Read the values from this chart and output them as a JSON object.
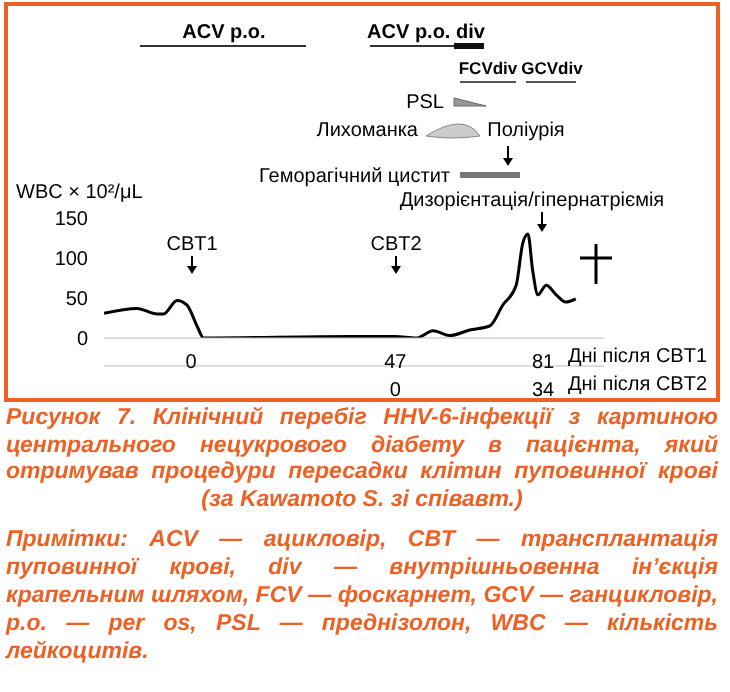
{
  "chart_data": {
    "type": "line",
    "title": "Рисунок 7. Клінічний перебіг HHV-6-інфекції з картиною центрального нецукрового діабету в пацієнта, який отримував процедури пересадки клітин пуповинної крові (за Kawamoto S. зі співавт.)",
    "ylabel": "WBC × 10²/μL",
    "xlabel": "Дні після CBT1",
    "x2label": "Дні після CBT2",
    "x": [
      -20,
      -12.4,
      -7.8,
      -6.3,
      -3.2,
      -0.9,
      1.4,
      2.9,
      36.5,
      47,
      51.8,
      55.7,
      59.5,
      64.1,
      68.7,
      71.7,
      74.8,
      76.3,
      77.5,
      78.6,
      79.8,
      81.7,
      84,
      86.2,
      88.5
    ],
    "values": [
      31,
      37,
      30,
      30,
      47,
      41,
      15,
      0,
      2,
      2,
      0,
      9,
      3,
      10,
      15,
      41,
      66,
      118,
      130,
      84,
      54,
      66,
      54,
      45,
      49
    ],
    "color": "#000000",
    "marker": "none",
    "line_style": "solid",
    "xlim": [
      -20,
      95
    ],
    "xticks": [
      0,
      47,
      81
    ],
    "x2lim": [
      -67,
      48
    ],
    "x2ticks": [
      0,
      34
    ],
    "ylim": [
      0,
      150
    ],
    "yticks": [
      0,
      50,
      100,
      150
    ],
    "annotations": [
      "ACV p.o.",
      "ACV p.o. div",
      "FCVdiv",
      "GCVdiv",
      "PSL",
      "Лихоманка",
      "Поліурія",
      "Геморагічний цистит",
      "Дизорієнтація/гіпернатріємія",
      "CBT1",
      "CBT2",
      "Примітки: ACV — ацикловір, CBT — трансплантація пуповинної крові, div — внутрішньовенна ін’єкція крапельним шляхом, FCV — фоскарнет, GCV — ганцикловір, p.o. — per os, PSL — преднізолон, WBC — кількість лейкоцитів."
    ]
  }
}
